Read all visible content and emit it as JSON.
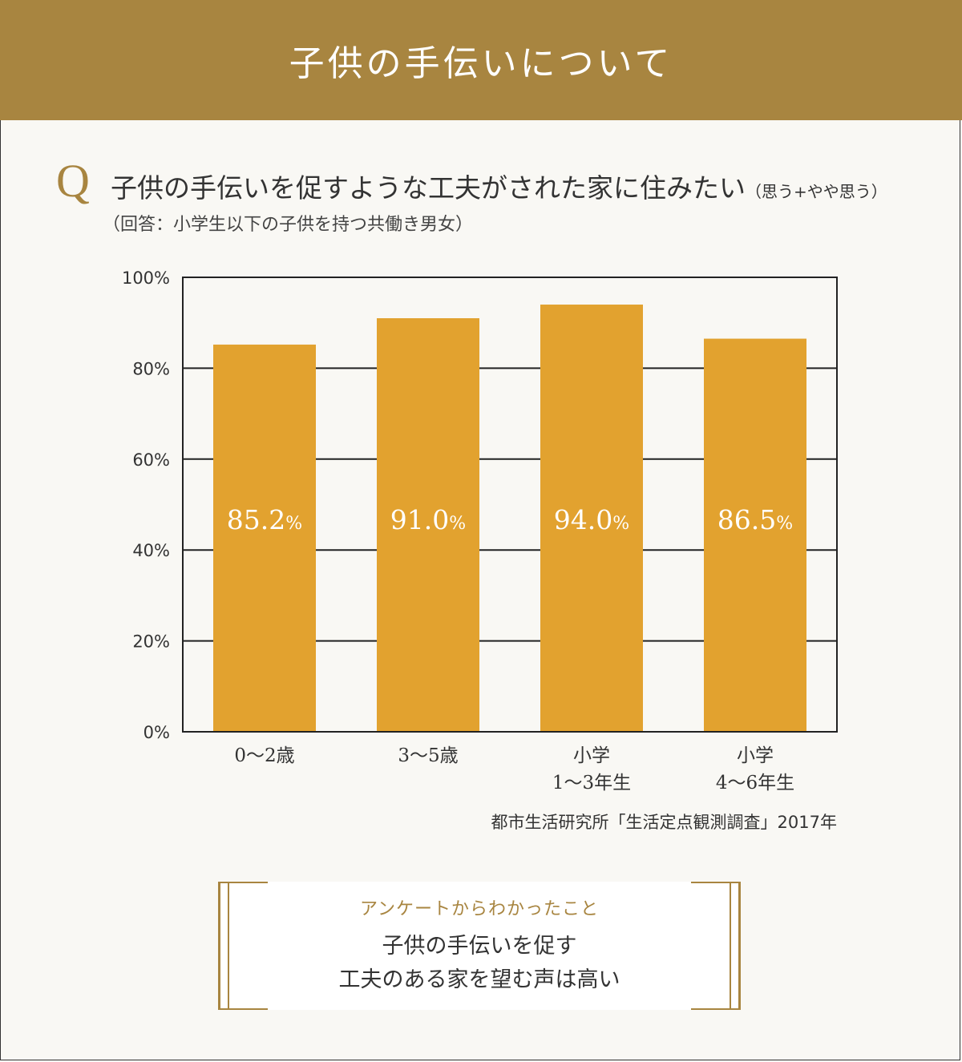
{
  "header": {
    "title": "子供の手伝いについて"
  },
  "question": {
    "mark": "Q",
    "text": "子供の手伝いを促すような工夫がされた家に住みたい",
    "note": "（思う+やや思う）",
    "respondents": "（回答：小学生以下の子供を持つ共働き男女）"
  },
  "chart_data": {
    "type": "bar",
    "categories": [
      "0〜2歳",
      "3〜5歳",
      "小学\n1〜3年生",
      "小学\n4〜6年生"
    ],
    "values": [
      85.2,
      91.0,
      94.0,
      86.5
    ],
    "value_labels": [
      "85.2",
      "91.0",
      "94.0",
      "86.5"
    ],
    "value_unit": "%",
    "ylim": [
      0,
      100
    ],
    "yticks": [
      "0%",
      "20%",
      "40%",
      "60%",
      "80%",
      "100%"
    ],
    "grid": true,
    "bar_color": "#e2a22f"
  },
  "source": "都市生活研究所「生活定点観測調査」2017年",
  "summary": {
    "heading": "アンケートからわかったこと",
    "line1": "子供の手伝いを促す",
    "line2": "工夫のある家を望む声は高い"
  },
  "colors": {
    "accent": "#a88540",
    "bar": "#e2a22f",
    "background": "#f9f8f4"
  }
}
